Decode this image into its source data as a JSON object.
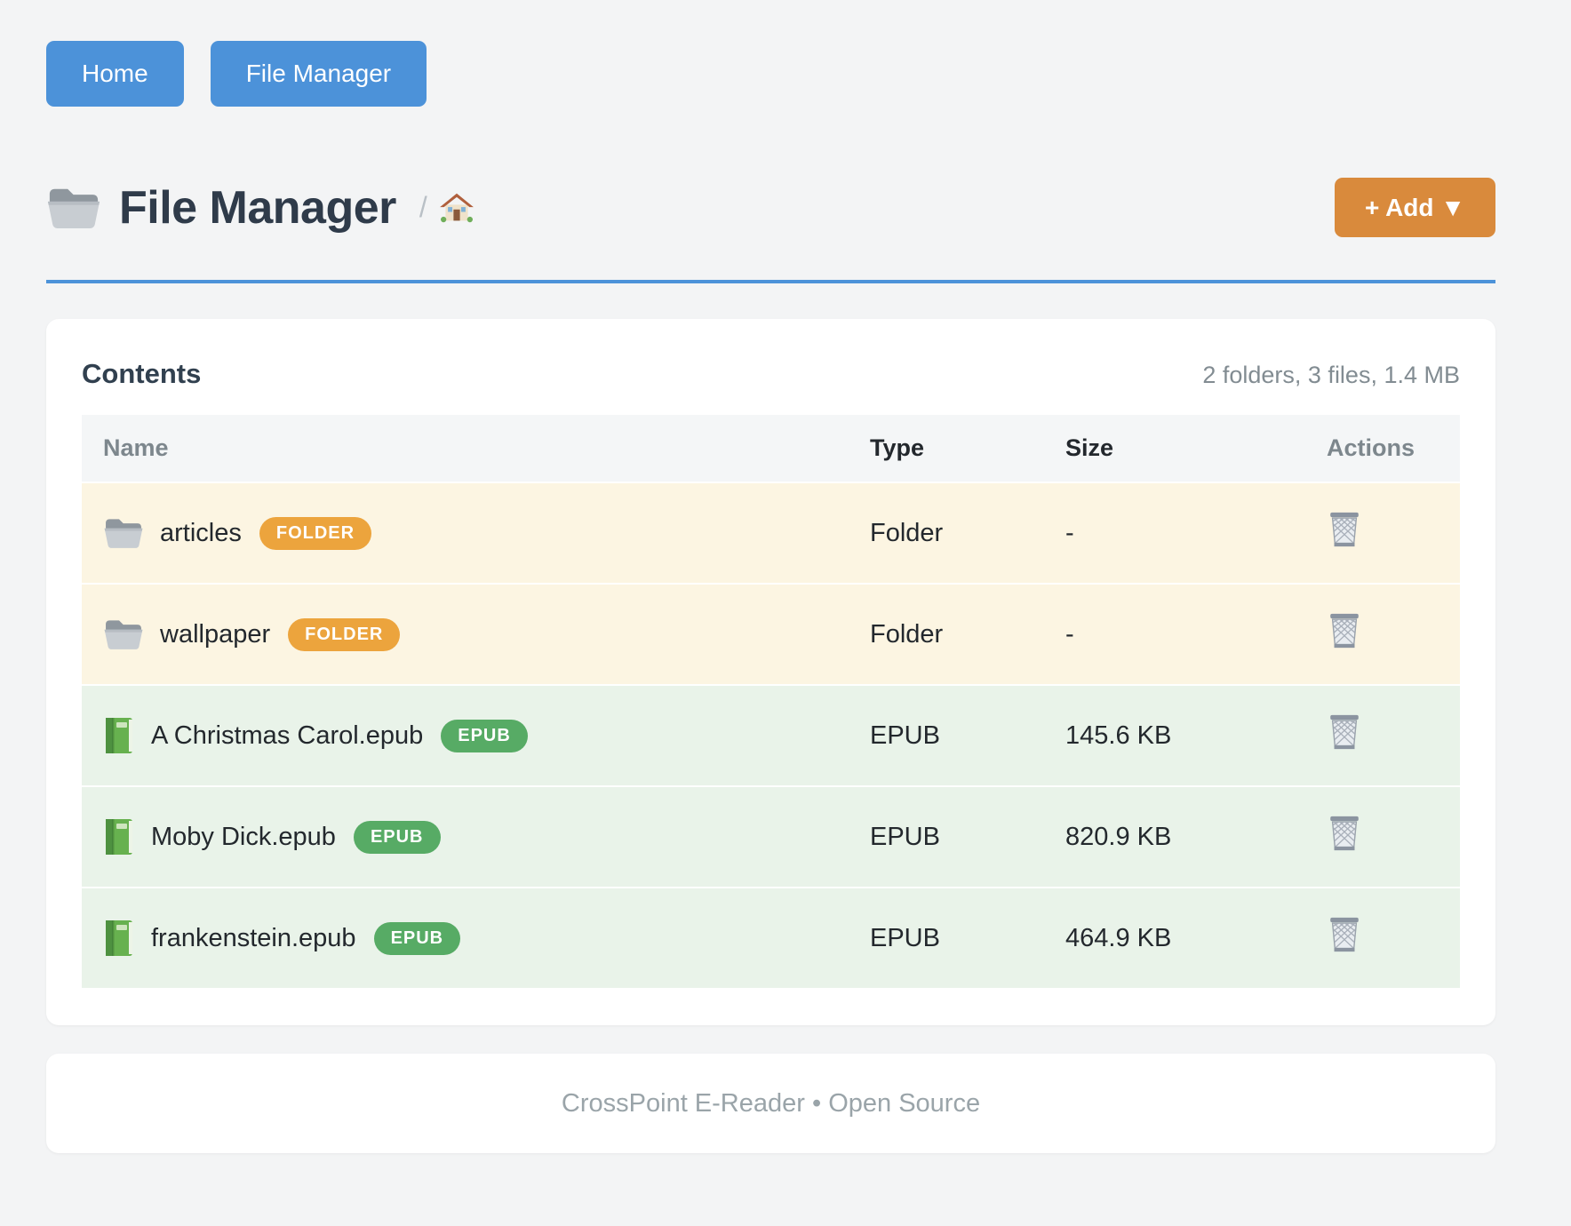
{
  "nav": {
    "home_label": "Home",
    "file_manager_label": "File Manager"
  },
  "header": {
    "icon": "folder-icon",
    "title": "File Manager",
    "breadcrumb_separator": "/",
    "breadcrumb_home_icon": "home-icon",
    "add_button_label": "+ Add ▼"
  },
  "contents": {
    "title": "Contents",
    "summary": "2 folders, 3 files, 1.4 MB",
    "action_icon": "trash-icon",
    "columns": {
      "name": "Name",
      "type": "Type",
      "size": "Size",
      "actions": "Actions"
    },
    "rows": [
      {
        "icon": "folder-icon",
        "name": "articles",
        "badge": "FOLDER",
        "type": "Folder",
        "size": "-",
        "style": "folder"
      },
      {
        "icon": "folder-icon",
        "name": "wallpaper",
        "badge": "FOLDER",
        "type": "Folder",
        "size": "-",
        "style": "folder"
      },
      {
        "icon": "book-icon",
        "name": "A Christmas Carol.epub",
        "badge": "EPUB",
        "type": "EPUB",
        "size": "145.6 KB",
        "style": "epub"
      },
      {
        "icon": "book-icon",
        "name": "Moby Dick.epub",
        "badge": "EPUB",
        "type": "EPUB",
        "size": "820.9 KB",
        "style": "epub"
      },
      {
        "icon": "book-icon",
        "name": "frankenstein.epub",
        "badge": "EPUB",
        "type": "EPUB",
        "size": "464.9 KB",
        "style": "epub"
      }
    ]
  },
  "footer": {
    "text": "CrossPoint E-Reader • Open Source"
  },
  "colors": {
    "primary_blue": "#4c92d9",
    "accent_orange": "#d98a3c",
    "badge_orange": "#eca43d",
    "badge_green": "#57ab65",
    "row_folder_bg": "#fcf5e2",
    "row_epub_bg": "#e9f3e9"
  }
}
